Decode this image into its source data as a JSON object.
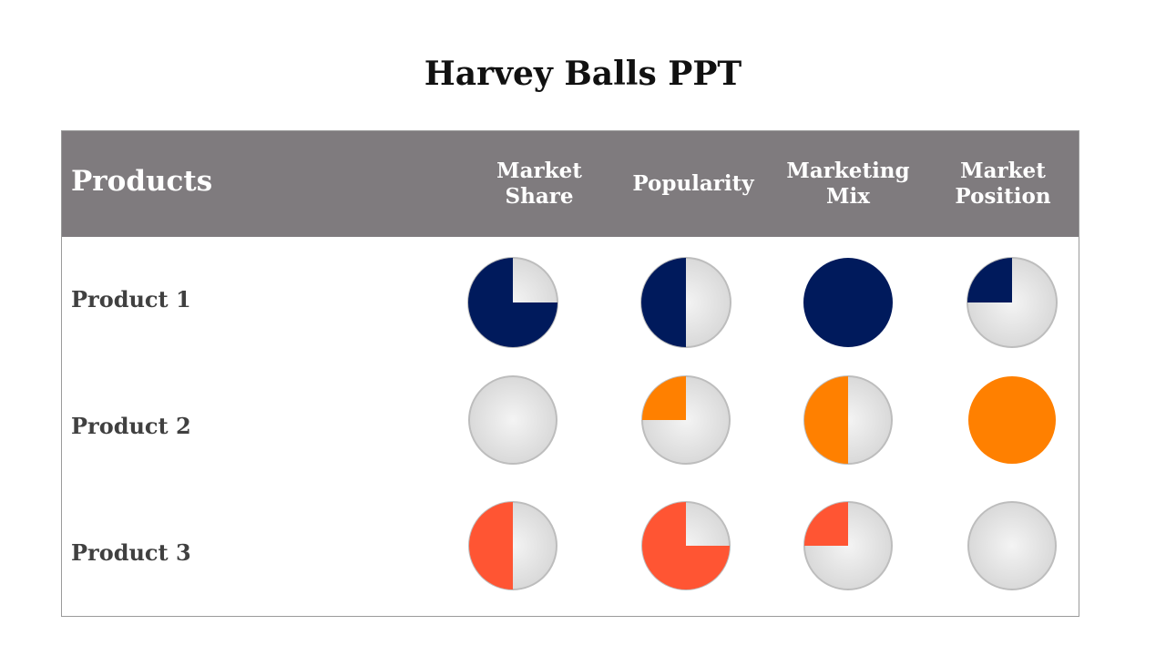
{
  "title": "Harvey Balls PPT",
  "header": {
    "products_label": "Products",
    "columns": [
      "Market\nShare",
      "Popularity",
      "Marketing\nMix",
      "Market\nPosition"
    ]
  },
  "rows": [
    {
      "label": "Product 1",
      "color": "#001a5c",
      "fills": [
        0.75,
        0.5,
        1.0,
        0.25
      ]
    },
    {
      "label": "Product 2",
      "color": "#ff8000",
      "fills": [
        0.0,
        0.25,
        0.5,
        1.0
      ]
    },
    {
      "label": "Product 3",
      "color": "#ff5533",
      "fills": [
        0.5,
        0.75,
        0.25,
        0.0
      ]
    }
  ],
  "colors": {
    "header_bg": "#7f7b7e",
    "ball_empty": "#e6e6e6",
    "ball_border": "#bdbdbd"
  }
}
